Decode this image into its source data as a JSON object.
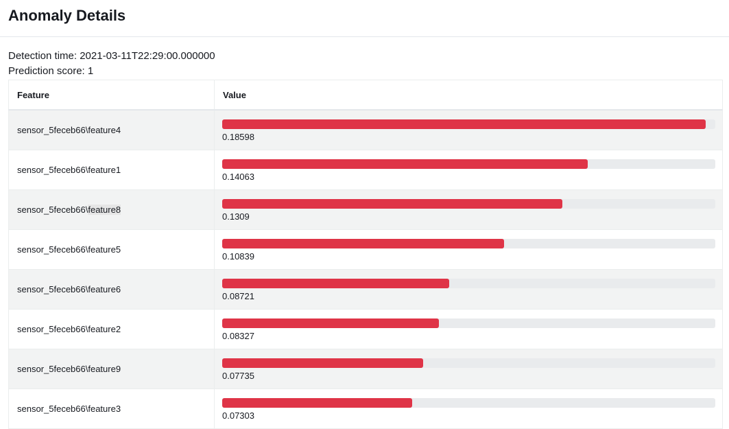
{
  "header": {
    "title": "Anomaly Details"
  },
  "meta": {
    "detection_time_label": "Detection time: 2021-03-11T22:29:00.000000",
    "prediction_score_label": "Prediction score: 1"
  },
  "table": {
    "columns": [
      "Feature",
      "Value"
    ],
    "rows": [
      {
        "feature_prefix": "sensor_5feceb66\\",
        "feature_suffix": "feature4",
        "value": "0.18598",
        "fill_fraction": 0.98
      },
      {
        "feature_prefix": "sensor_5feceb66\\",
        "feature_suffix": "feature1",
        "value": "0.14063",
        "fill_fraction": 0.741
      },
      {
        "feature_prefix": "sensor_5feceb66\\",
        "feature_suffix": "feature8",
        "value": "0.1309",
        "fill_fraction": 0.69,
        "highlighted": true
      },
      {
        "feature_prefix": "sensor_5feceb66\\",
        "feature_suffix": "feature5",
        "value": "0.10839",
        "fill_fraction": 0.571
      },
      {
        "feature_prefix": "sensor_5feceb66\\",
        "feature_suffix": "feature6",
        "value": "0.08721",
        "fill_fraction": 0.46
      },
      {
        "feature_prefix": "sensor_5feceb66\\",
        "feature_suffix": "feature2",
        "value": "0.08327",
        "fill_fraction": 0.439
      },
      {
        "feature_prefix": "sensor_5feceb66\\",
        "feature_suffix": "feature9",
        "value": "0.07735",
        "fill_fraction": 0.408
      },
      {
        "feature_prefix": "sensor_5feceb66\\",
        "feature_suffix": "feature3",
        "value": "0.07303",
        "fill_fraction": 0.385
      }
    ]
  },
  "colors": {
    "bar_fill": "#df3447",
    "bar_track": "#e9ebed",
    "row_alt": "#f2f3f3"
  }
}
